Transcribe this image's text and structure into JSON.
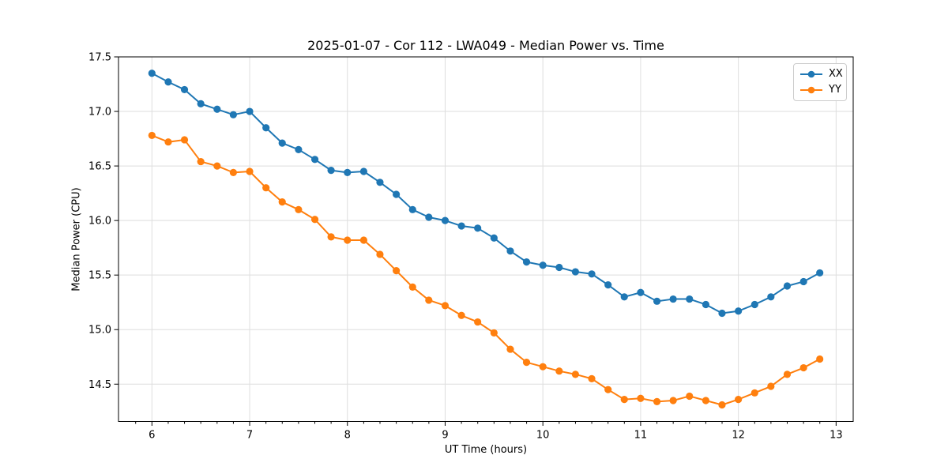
{
  "chart_data": {
    "type": "line",
    "title": "2025-01-07 - Cor 112 - LWA049 - Median Power vs. Time",
    "xlabel": "UT Time (hours)",
    "ylabel": "Median Power (CPU)",
    "xlim": [
      5.658,
      13.175
    ],
    "ylim": [
      14.158,
      17.5
    ],
    "grid": true,
    "legend_position": "upper right",
    "xticks": {
      "values": [
        6,
        7,
        8,
        9,
        10,
        11,
        12,
        13
      ],
      "labels": [
        "6",
        "7",
        "8",
        "9",
        "10",
        "11",
        "12",
        "13"
      ]
    },
    "yticks": {
      "values": [
        14.5,
        15.0,
        15.5,
        16.0,
        16.5,
        17.0,
        17.5
      ],
      "labels": [
        "14.5",
        "15.0",
        "15.5",
        "16.0",
        "16.5",
        "17.0",
        "17.5"
      ]
    },
    "x_minor_step": 0.16667,
    "x": [
      6.0,
      6.167,
      6.333,
      6.5,
      6.667,
      6.833,
      7.0,
      7.167,
      7.333,
      7.5,
      7.667,
      7.833,
      8.0,
      8.167,
      8.333,
      8.5,
      8.667,
      8.833,
      9.0,
      9.167,
      9.333,
      9.5,
      9.667,
      9.833,
      10.0,
      10.167,
      10.333,
      10.5,
      10.667,
      10.833,
      11.0,
      11.167,
      11.333,
      11.5,
      11.667,
      11.833,
      12.0,
      12.167,
      12.333,
      12.5,
      12.667,
      12.833
    ],
    "series": [
      {
        "name": "XX",
        "color": "#1f77b4",
        "values": [
          17.35,
          17.27,
          17.2,
          17.07,
          17.02,
          16.97,
          17.0,
          16.85,
          16.71,
          16.65,
          16.56,
          16.46,
          16.44,
          16.45,
          16.35,
          16.24,
          16.1,
          16.03,
          16.0,
          15.95,
          15.93,
          15.84,
          15.72,
          15.62,
          15.59,
          15.57,
          15.53,
          15.51,
          15.41,
          15.3,
          15.34,
          15.26,
          15.28,
          15.28,
          15.23,
          15.15,
          15.17,
          15.23,
          15.3,
          15.4,
          15.44,
          15.52
        ]
      },
      {
        "name": "YY",
        "color": "#ff7f0e",
        "values": [
          16.78,
          16.72,
          16.74,
          16.54,
          16.5,
          16.44,
          16.45,
          16.3,
          16.17,
          16.1,
          16.01,
          15.85,
          15.82,
          15.82,
          15.69,
          15.54,
          15.39,
          15.27,
          15.22,
          15.13,
          15.07,
          14.97,
          14.82,
          14.7,
          14.66,
          14.62,
          14.59,
          14.55,
          14.45,
          14.36,
          14.37,
          14.34,
          14.35,
          14.39,
          14.35,
          14.31,
          14.36,
          14.42,
          14.48,
          14.59,
          14.65,
          14.73
        ]
      }
    ],
    "style": {
      "grid_color": "#dedede",
      "spine_color": "#000000",
      "tick_label_color": "#000000",
      "marker_radius": 4.6,
      "line_width": 2
    }
  }
}
